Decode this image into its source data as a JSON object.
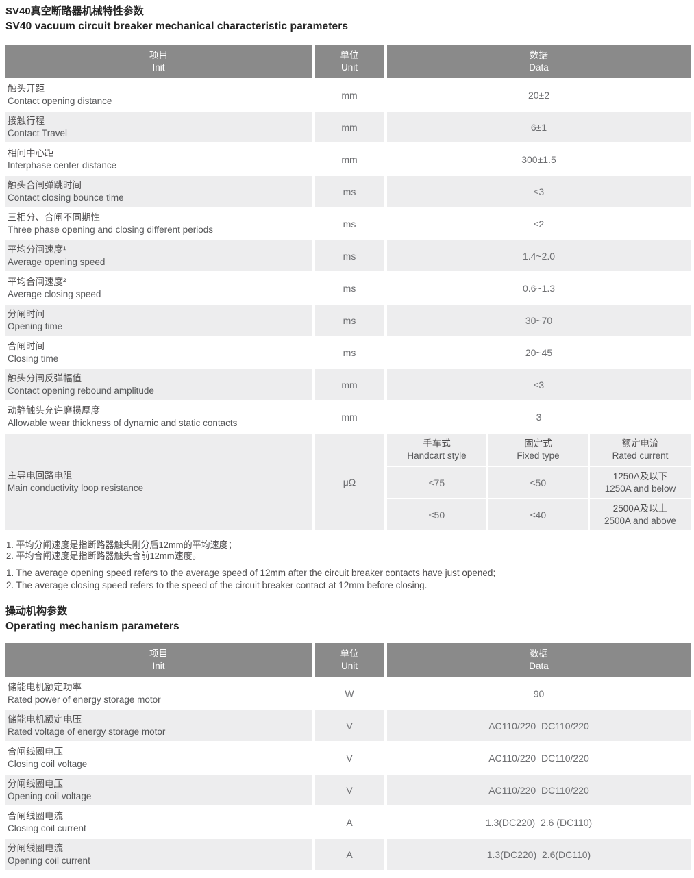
{
  "colors": {
    "header_bg": "#8a8a8a",
    "alt_row_bg": "#ededee",
    "header_text": "#ffffff",
    "body_text": "#565759"
  },
  "section1": {
    "title_zh": "SV40真空断路器机械特性参数",
    "title_en": "SV40 vacuum circuit breaker mechanical characteristic parameters",
    "headers": {
      "item_zh": "项目",
      "item_en": "Init",
      "unit_zh": "单位",
      "unit_en": "Unit",
      "data_zh": "数据",
      "data_en": "Data"
    },
    "rows": [
      {
        "zh": "触头开距",
        "en": "Contact opening distance",
        "unit": "mm",
        "value": "20±2"
      },
      {
        "zh": "接触行程",
        "en": "Contact Travel",
        "unit": "mm",
        "value": "6±1"
      },
      {
        "zh": "相间中心距",
        "en": "Interphase center distance",
        "unit": "mm",
        "value": "300±1.5"
      },
      {
        "zh": "触头合闸弹跳时间",
        "en": "Contact closing bounce time",
        "unit": "ms",
        "value": "≤3"
      },
      {
        "zh": "三相分、合闸不同期性",
        "en": "Three phase opening and closing different periods",
        "unit": "ms",
        "value": "≤2"
      },
      {
        "zh": "平均分闸速度¹",
        "en": "Average opening speed",
        "unit": "ms",
        "value": "1.4~2.0"
      },
      {
        "zh": "平均合闸速度²",
        "en": "Average closing speed",
        "unit": "ms",
        "value": "0.6~1.3"
      },
      {
        "zh": "分闸时间",
        "en": "Opening time",
        "unit": "ms",
        "value": "30~70"
      },
      {
        "zh": "合闸时间",
        "en": "Closing time",
        "unit": "ms",
        "value": "20~45"
      },
      {
        "zh": "触头分闸反弹幅值",
        "en": "Contact opening rebound amplitude",
        "unit": "mm",
        "value": "≤3"
      },
      {
        "zh": "动静触头允许磨损厚度",
        "en": "Allowable wear thickness of dynamic and static contacts",
        "unit": "mm",
        "value": "3"
      }
    ],
    "resistance": {
      "zh": "主导电回路电阻",
      "en": "Main conductivity loop resistance",
      "unit": "μΩ",
      "sub_headers": {
        "handcart_zh": "手车式",
        "handcart_en": "Handcart style",
        "fixed_zh": "固定式",
        "fixed_en": "Fixed type",
        "rated_zh": "额定电流",
        "rated_en": "Rated current"
      },
      "sub_rows": [
        {
          "handcart": "≤75",
          "fixed": "≤50",
          "rated_zh": "1250A及以下",
          "rated_en": "1250A and below"
        },
        {
          "handcart": "≤50",
          "fixed": "≤40",
          "rated_zh": "2500A及以上",
          "rated_en": "2500A and above"
        }
      ]
    },
    "footnotes_zh": [
      "1. 平均分闸速度是指断路器触头刚分后12mm的平均速度；",
      "2. 平均合闸速度是指断路器触头合前12mm速度。"
    ],
    "footnotes_en": [
      "1. The average opening speed refers to the average speed of 12mm after the circuit breaker contacts have just opened;",
      "2. The average closing speed refers to the speed of the circuit breaker contact at 12mm before closing."
    ]
  },
  "section2": {
    "title_zh": "操动机构参数",
    "title_en": "Operating mechanism parameters",
    "headers": {
      "item_zh": "项目",
      "item_en": "Init",
      "unit_zh": "单位",
      "unit_en": "Unit",
      "data_zh": "数据",
      "data_en": "Data"
    },
    "rows": [
      {
        "zh": "储能电机额定功率",
        "en": "Rated power of energy storage motor",
        "unit": "W",
        "value": "90"
      },
      {
        "zh": "储能电机额定电压",
        "en": "Rated voltage of energy storage motor",
        "unit": "V",
        "value": "AC110/220  DC110/220"
      },
      {
        "zh": "合闸线圈电压",
        "en": "Closing coil voltage",
        "unit": "V",
        "value": "AC110/220  DC110/220"
      },
      {
        "zh": "分闸线圈电压",
        "en": "Opening coil voltage",
        "unit": "V",
        "value": "AC110/220  DC110/220"
      },
      {
        "zh": "合闸线圈电流",
        "en": "Closing coil current",
        "unit": "A",
        "value": "1.3(DC220)  2.6 (DC110)"
      },
      {
        "zh": "分闸线圈电流",
        "en": "Opening coil current",
        "unit": "A",
        "value": "1.3(DC220)  2.6(DC110)"
      }
    ]
  }
}
